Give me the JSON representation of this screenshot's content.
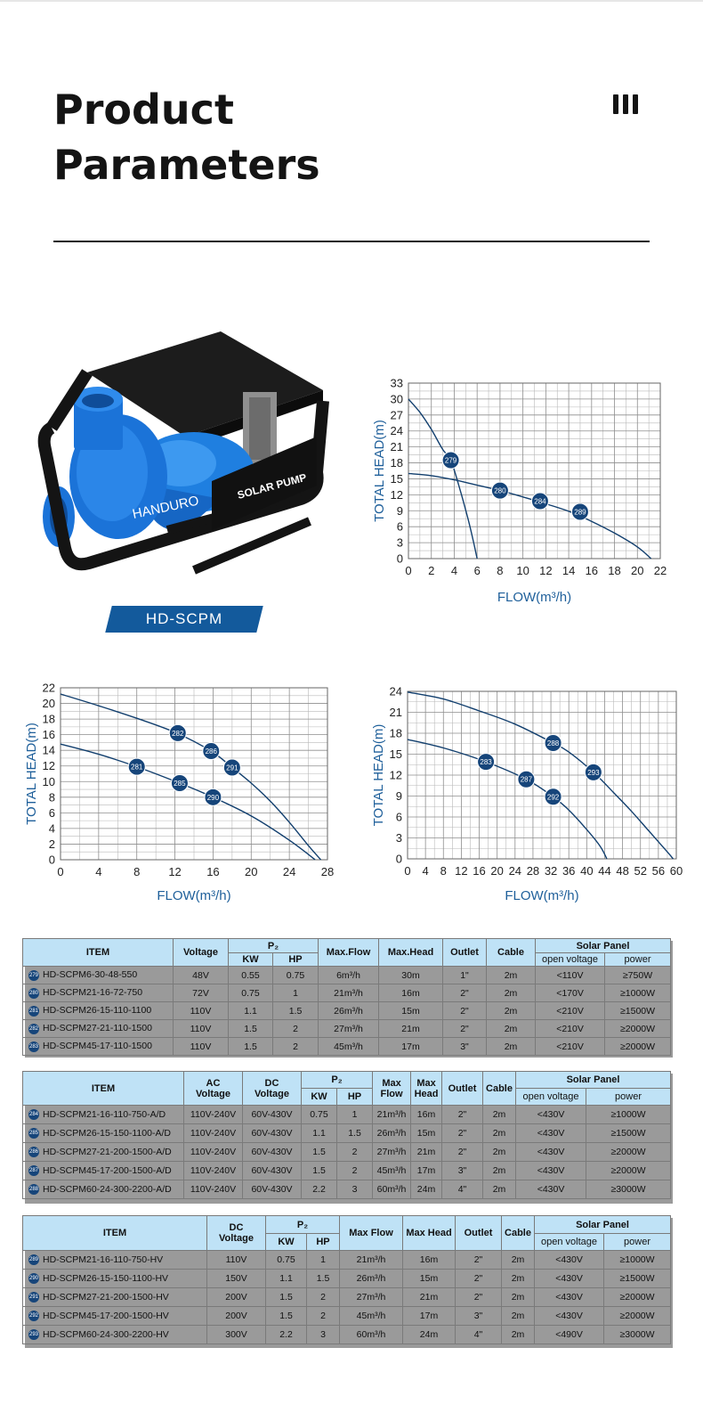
{
  "page": {
    "title_line1": "Product",
    "title_line2": "Parameters"
  },
  "pump_image": {
    "brand": "HANDURO",
    "label": "SOLAR PUMP",
    "model": "HD-SCPM"
  },
  "colors": {
    "curve": "#123f6e",
    "marker": "#16457a",
    "axis_label": "#1e5f9a",
    "table_header": "#bfe2f6",
    "badge": "#135a9c"
  },
  "chart_data": [
    {
      "type": "line",
      "xlabel": "FLOW(m³/h)",
      "ylabel": "TOTAL HEAD(m)",
      "xlim": [
        0,
        22
      ],
      "ylim": [
        0,
        33
      ],
      "xticks": [
        0,
        2,
        4,
        6,
        8,
        10,
        12,
        14,
        16,
        18,
        20,
        22
      ],
      "yticks": [
        0,
        3,
        6,
        9,
        12,
        15,
        18,
        21,
        24,
        27,
        30,
        33
      ],
      "grid": true,
      "series": [
        {
          "x": [
            0,
            1,
            2,
            3,
            3.7,
            4.5,
            5.2,
            5.7,
            6
          ],
          "y": [
            30,
            27.5,
            24.3,
            20.5,
            18.5,
            13,
            7.5,
            3,
            0
          ],
          "markers": [
            {
              "label": "279",
              "x": 3.7,
              "y": 18.5
            }
          ]
        },
        {
          "x": [
            0,
            2,
            4,
            6,
            8,
            10,
            12,
            14,
            16,
            18,
            20,
            21.2
          ],
          "y": [
            16,
            15.6,
            14.8,
            13.8,
            12.8,
            11.6,
            10.3,
            8.9,
            7,
            4.8,
            2.2,
            0
          ],
          "markers": [
            {
              "label": "280",
              "x": 8,
              "y": 12.8
            },
            {
              "label": "284",
              "x": 11.5,
              "y": 10.8
            },
            {
              "label": "289",
              "x": 15,
              "y": 8.8
            }
          ]
        }
      ]
    },
    {
      "type": "line",
      "xlabel": "FLOW(m³/h)",
      "ylabel": "TOTAL HEAD(m)",
      "xlim": [
        0,
        28
      ],
      "ylim": [
        0,
        22
      ],
      "xticks": [
        0,
        4,
        8,
        12,
        16,
        20,
        24,
        28
      ],
      "yticks": [
        0,
        2,
        4,
        6,
        8,
        10,
        12,
        14,
        16,
        18,
        20,
        22
      ],
      "grid": true,
      "series": [
        {
          "x": [
            0,
            4,
            8,
            12,
            15.8,
            18,
            20,
            22,
            24,
            26,
            27.3
          ],
          "y": [
            21.2,
            19.7,
            18.1,
            16.3,
            13.9,
            11.8,
            9.8,
            7.5,
            4.8,
            1.8,
            0
          ],
          "markers": [
            {
              "label": "282",
              "x": 12.3,
              "y": 16.2
            },
            {
              "label": "286",
              "x": 15.8,
              "y": 13.9
            },
            {
              "label": "291",
              "x": 18,
              "y": 11.8
            }
          ]
        },
        {
          "x": [
            0,
            4,
            8,
            12.5,
            16,
            20,
            24,
            26.7
          ],
          "y": [
            14.8,
            13.5,
            11.9,
            9.8,
            8,
            5.6,
            2.5,
            0
          ],
          "markers": [
            {
              "label": "281",
              "x": 8,
              "y": 11.9
            },
            {
              "label": "285",
              "x": 12.5,
              "y": 9.8
            },
            {
              "label": "290",
              "x": 16,
              "y": 8
            }
          ]
        }
      ]
    },
    {
      "type": "line",
      "xlabel": "FLOW(m³/h)",
      "ylabel": "TOTAL HEAD(m)",
      "xlim": [
        0,
        60
      ],
      "ylim": [
        0,
        24
      ],
      "xticks": [
        0,
        4,
        8,
        12,
        16,
        20,
        24,
        28,
        32,
        36,
        40,
        44,
        48,
        52,
        56,
        60
      ],
      "yticks": [
        0,
        3,
        6,
        9,
        12,
        15,
        18,
        21,
        24
      ],
      "grid": true,
      "series": [
        {
          "x": [
            0,
            8,
            16,
            24,
            32.5,
            36,
            41.5,
            46,
            50,
            54,
            58,
            59.3
          ],
          "y": [
            23.9,
            22.9,
            21.2,
            19.3,
            16.6,
            15.3,
            12.4,
            9.5,
            6.8,
            3.9,
            1,
            0
          ],
          "markers": [
            {
              "label": "288",
              "x": 32.5,
              "y": 16.6
            },
            {
              "label": "293",
              "x": 41.5,
              "y": 12.4
            }
          ]
        },
        {
          "x": [
            0,
            8,
            17.5,
            26.5,
            32.5,
            36,
            40,
            43,
            44.5
          ],
          "y": [
            17.1,
            15.9,
            13.9,
            11.4,
            8.9,
            7,
            4.2,
            1.8,
            0
          ],
          "markers": [
            {
              "label": "283",
              "x": 17.5,
              "y": 13.9
            },
            {
              "label": "287",
              "x": 26.5,
              "y": 11.4
            },
            {
              "label": "292",
              "x": 32.5,
              "y": 8.9
            }
          ]
        }
      ]
    }
  ],
  "tables": {
    "t1": {
      "h_item": "ITEM",
      "h_voltage": "Voltage",
      "h_p2": "P₂",
      "h_kw": "KW",
      "h_hp": "HP",
      "h_flow": "Max.Flow",
      "h_head": "Max.Head",
      "h_outlet": "Outlet",
      "h_cable": "Cable",
      "h_solar": "Solar Panel",
      "h_openv": "open voltage",
      "h_power": "power",
      "rows": [
        [
          "279",
          "HD-SCPM6-30-48-550",
          "48V",
          "0.55",
          "0.75",
          "6m³/h",
          "30m",
          "1\"",
          "2m",
          "<110V",
          "≥750W"
        ],
        [
          "280",
          "HD-SCPM21-16-72-750",
          "72V",
          "0.75",
          "1",
          "21m³/h",
          "16m",
          "2\"",
          "2m",
          "<170V",
          "≥1000W"
        ],
        [
          "281",
          "HD-SCPM26-15-110-1100",
          "110V",
          "1.1",
          "1.5",
          "26m³/h",
          "15m",
          "2\"",
          "2m",
          "<210V",
          "≥1500W"
        ],
        [
          "282",
          "HD-SCPM27-21-110-1500",
          "110V",
          "1.5",
          "2",
          "27m³/h",
          "21m",
          "2\"",
          "2m",
          "<210V",
          "≥2000W"
        ],
        [
          "283",
          "HD-SCPM45-17-110-1500",
          "110V",
          "1.5",
          "2",
          "45m³/h",
          "17m",
          "3\"",
          "2m",
          "<210V",
          "≥2000W"
        ]
      ]
    },
    "t2": {
      "h_item": "ITEM",
      "h_ac1": "AC",
      "h_ac2": "Voltage",
      "h_dc1": "DC",
      "h_dc2": "Voltage",
      "h_p2": "P₂",
      "h_kw": "KW",
      "h_hp": "HP",
      "h_flow1": "Max",
      "h_flow2": "Flow",
      "h_head1": "Max",
      "h_head2": "Head",
      "h_outlet": "Outlet",
      "h_cable": "Cable",
      "h_solar": "Solar Panel",
      "h_openv": "open voltage",
      "h_power": "power",
      "rows": [
        [
          "284",
          "HD-SCPM21-16-110-750-A/D",
          "110V-240V",
          "60V-430V",
          "0.75",
          "1",
          "21m³/h",
          "16m",
          "2\"",
          "2m",
          "<430V",
          "≥1000W"
        ],
        [
          "285",
          "HD-SCPM26-15-150-1100-A/D",
          "110V-240V",
          "60V-430V",
          "1.1",
          "1.5",
          "26m³/h",
          "15m",
          "2\"",
          "2m",
          "<430V",
          "≥1500W"
        ],
        [
          "286",
          "HD-SCPM27-21-200-1500-A/D",
          "110V-240V",
          "60V-430V",
          "1.5",
          "2",
          "27m³/h",
          "21m",
          "2\"",
          "2m",
          "<430V",
          "≥2000W"
        ],
        [
          "287",
          "HD-SCPM45-17-200-1500-A/D",
          "110V-240V",
          "60V-430V",
          "1.5",
          "2",
          "45m³/h",
          "17m",
          "3\"",
          "2m",
          "<430V",
          "≥2000W"
        ],
        [
          "288",
          "HD-SCPM60-24-300-2200-A/D",
          "110V-240V",
          "60V-430V",
          "2.2",
          "3",
          "60m³/h",
          "24m",
          "4\"",
          "2m",
          "<430V",
          "≥3000W"
        ]
      ]
    },
    "t3": {
      "h_item": "ITEM",
      "h_dc1": "DC",
      "h_dc2": "Voltage",
      "h_p2": "P₂",
      "h_kw": "KW",
      "h_hp": "HP",
      "h_flow": "Max Flow",
      "h_head": "Max Head",
      "h_outlet": "Outlet",
      "h_cable": "Cable",
      "h_solar": "Solar Panel",
      "h_openv": "open voltage",
      "h_power": "power",
      "rows": [
        [
          "289",
          "HD-SCPM21-16-110-750-HV",
          "110V",
          "0.75",
          "1",
          "21m³/h",
          "16m",
          "2\"",
          "2m",
          "<430V",
          "≥1000W"
        ],
        [
          "290",
          "HD-SCPM26-15-150-1100-HV",
          "150V",
          "1.1",
          "1.5",
          "26m³/h",
          "15m",
          "2\"",
          "2m",
          "<430V",
          "≥1500W"
        ],
        [
          "291",
          "HD-SCPM27-21-200-1500-HV",
          "200V",
          "1.5",
          "2",
          "27m³/h",
          "21m",
          "2\"",
          "2m",
          "<430V",
          "≥2000W"
        ],
        [
          "292",
          "HD-SCPM45-17-200-1500-HV",
          "200V",
          "1.5",
          "2",
          "45m³/h",
          "17m",
          "3\"",
          "2m",
          "<430V",
          "≥2000W"
        ],
        [
          "293",
          "HD-SCPM60-24-300-2200-HV",
          "300V",
          "2.2",
          "3",
          "60m³/h",
          "24m",
          "4\"",
          "2m",
          "<490V",
          "≥3000W"
        ]
      ]
    }
  }
}
